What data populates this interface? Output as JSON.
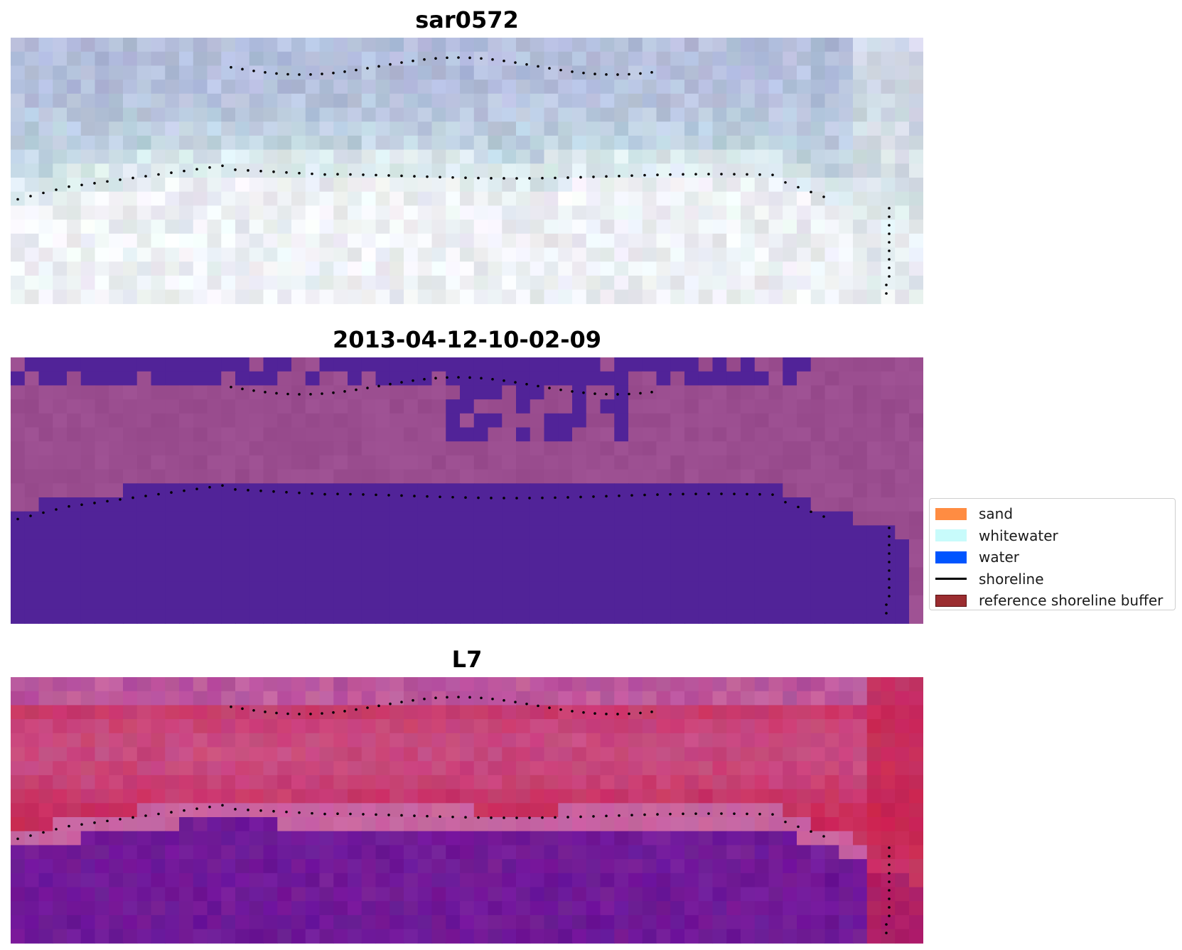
{
  "figure": {
    "titles": [
      "sar0572",
      "2013-04-12-10-02-09",
      "L7"
    ]
  },
  "legend": {
    "items": [
      {
        "label": "sand",
        "color": "#ff8c42",
        "kind": "patch"
      },
      {
        "label": "whitewater",
        "color": "#c8fbfb",
        "kind": "patch"
      },
      {
        "label": "water",
        "color": "#0055ff",
        "kind": "patch"
      },
      {
        "label": "shoreline",
        "color": "#000000",
        "kind": "line"
      },
      {
        "label": "reference shoreline buffer",
        "color": "#9b2d30",
        "kind": "patch"
      }
    ]
  },
  "colors": {
    "rgb_ocean": "#b4bedc",
    "rgb_beach": "#eef1f5",
    "class_water": "#512398",
    "class_land": "#9a4d8f",
    "index_water": "#6a1595",
    "index_land": "#c8204d",
    "shoreline_dots": "#000000"
  }
}
